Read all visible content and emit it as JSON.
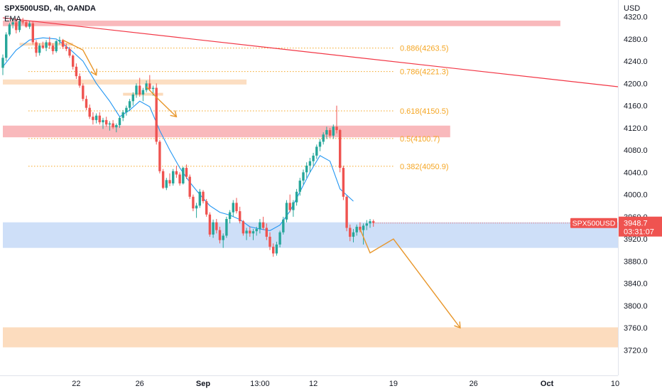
{
  "header": {
    "symbol_line": "SPX500USD, 4h, OANDA",
    "indicator": "EMA"
  },
  "colors": {
    "up": "#26a69a",
    "down": "#ef5350",
    "ema": "#2196f3",
    "trend_line": "#f23645",
    "fib": "#f5a623",
    "resistance_zone": "#f7a1a6",
    "support_zone": "#c5d9f7",
    "demand_zone": "#fbd6b3",
    "projection": "#e8962a",
    "price_label_bg": "#ef5350"
  },
  "chart_data": {
    "type": "candlestick",
    "currency": "USD",
    "price_axis": {
      "min": 3700,
      "max": 4330,
      "ticks": [
        "4320.0",
        "4280.0",
        "4240.0",
        "4200.0",
        "4160.0",
        "4120.0",
        "4080.0",
        "4040.0",
        "4000.0",
        "3960.0",
        "3920.0",
        "3880.0",
        "3840.0",
        "3800.0",
        "3760.0",
        "3720.0"
      ]
    },
    "time_axis": {
      "bar_min": 0,
      "bar_max": 184,
      "ticks": [
        {
          "label": "22",
          "bar": 22,
          "bold": false
        },
        {
          "label": "26",
          "bar": 41,
          "bold": false
        },
        {
          "label": "Sep",
          "bar": 60,
          "bold": true
        },
        {
          "label": "13:00",
          "bar": 77,
          "bold": false
        },
        {
          "label": "12",
          "bar": 93,
          "bold": false
        },
        {
          "label": "19",
          "bar": 117,
          "bold": false
        },
        {
          "label": "26",
          "bar": 141,
          "bold": false
        },
        {
          "label": "Oct",
          "bar": 163,
          "bold": true
        },
        {
          "label": "10",
          "bar": 187,
          "bold": false
        }
      ]
    },
    "last_price": {
      "symbol": "SPX500USD",
      "price": "3948.7",
      "countdown": "03:31:07",
      "value": 3948.7
    },
    "trend_line": {
      "from": {
        "bar": 0,
        "price": 4318
      },
      "to": {
        "bar": 187,
        "price": 4194
      }
    },
    "fib_levels": [
      {
        "label": "0.886(4263.5)",
        "price": 4263.5,
        "bar_start": 9,
        "bar_end": 121
      },
      {
        "label": "0.786(4221.3)",
        "price": 4221.3,
        "bar_start": 9,
        "bar_end": 121
      },
      {
        "label": "0.618(4150.5)",
        "price": 4150.5,
        "bar_start": 9,
        "bar_end": 121
      },
      {
        "label": "0.5(4100.7)",
        "price": 4100.7,
        "bar_start": 9,
        "bar_end": 121
      },
      {
        "label": "0.382(4050.9)",
        "price": 4050.9,
        "bar_start": 9,
        "bar_end": 121
      }
    ],
    "zones": [
      {
        "name": "resistance-zone-top",
        "price_top": 4313,
        "price_bottom": 4303,
        "bar_start": 0,
        "bar_end": 167,
        "kind": "resistance_zone",
        "opacity": 0.75
      },
      {
        "name": "resistance-zone-mid",
        "price_top": 4124,
        "price_bottom": 4103,
        "bar_start": 0,
        "bar_end": 134,
        "kind": "resistance_zone",
        "opacity": 0.75
      },
      {
        "name": "supply-zone-upper",
        "price_top": 4207,
        "price_bottom": 4198,
        "bar_start": 0,
        "bar_end": 73,
        "kind": "demand_zone",
        "opacity": 0.8
      },
      {
        "name": "small-zone-1",
        "price_top": 4273,
        "price_bottom": 4268,
        "bar_start": 5,
        "bar_end": 21,
        "kind": "demand_zone",
        "opacity": 0.9
      },
      {
        "name": "small-zone-2",
        "price_top": 4183,
        "price_bottom": 4178,
        "bar_start": 36,
        "bar_end": 48,
        "kind": "demand_zone",
        "opacity": 0.9
      },
      {
        "name": "support-zone",
        "price_top": 3950,
        "price_bottom": 3904,
        "bar_start": 0,
        "bar_end": 187,
        "kind": "support_zone",
        "opacity": 0.85
      },
      {
        "name": "demand-zone-bottom",
        "price_top": 3761,
        "price_bottom": 3725,
        "bar_start": 0,
        "bar_end": 187,
        "kind": "demand_zone",
        "opacity": 0.85
      }
    ],
    "projection_paths": [
      {
        "name": "projection-arrow-1",
        "points": [
          [
            18,
            4278
          ],
          [
            24,
            4260
          ],
          [
            28,
            4215
          ]
        ]
      },
      {
        "name": "projection-arrow-2",
        "points": [
          [
            43,
            4194
          ],
          [
            46,
            4175
          ],
          [
            52,
            4140
          ]
        ]
      },
      {
        "name": "projection-arrow-main",
        "points": [
          [
            107,
            3938
          ],
          [
            110,
            3895
          ],
          [
            117,
            3920
          ],
          [
            137,
            3760
          ]
        ]
      }
    ],
    "ema": [
      [
        0,
        4230
      ],
      [
        4,
        4260
      ],
      [
        8,
        4278
      ],
      [
        12,
        4282
      ],
      [
        16,
        4280
      ],
      [
        20,
        4262
      ],
      [
        24,
        4240
      ],
      [
        28,
        4200
      ],
      [
        32,
        4168
      ],
      [
        35,
        4140
      ],
      [
        38,
        4152
      ],
      [
        41,
        4168
      ],
      [
        44,
        4158
      ],
      [
        47,
        4115
      ],
      [
        50,
        4080
      ],
      [
        53,
        4048
      ],
      [
        56,
        4022
      ],
      [
        59,
        4000
      ],
      [
        62,
        3980
      ],
      [
        65,
        3968
      ],
      [
        68,
        3963
      ],
      [
        71,
        3955
      ],
      [
        74,
        3942
      ],
      [
        77,
        3938
      ],
      [
        80,
        3935
      ],
      [
        83,
        3945
      ],
      [
        86,
        3970
      ],
      [
        89,
        4005
      ],
      [
        92,
        4040
      ],
      [
        95,
        4070
      ],
      [
        98,
        4060
      ],
      [
        101,
        4010
      ],
      [
        105,
        3988
      ]
    ],
    "candles": [
      [
        0,
        4228,
        4252,
        4215,
        4246
      ],
      [
        1,
        4246,
        4292,
        4240,
        4288
      ],
      [
        2,
        4288,
        4309,
        4285,
        4306
      ],
      [
        3,
        4306,
        4318,
        4299,
        4310
      ],
      [
        4,
        4310,
        4316,
        4290,
        4296
      ],
      [
        5,
        4296,
        4314,
        4292,
        4312
      ],
      [
        6,
        4312,
        4318,
        4306,
        4310
      ],
      [
        7,
        4310,
        4314,
        4300,
        4302
      ],
      [
        8,
        4302,
        4312,
        4298,
        4308
      ],
      [
        9,
        4308,
        4312,
        4270,
        4274
      ],
      [
        10,
        4274,
        4278,
        4248,
        4255
      ],
      [
        11,
        4255,
        4272,
        4250,
        4268
      ],
      [
        12,
        4268,
        4275,
        4262,
        4264
      ],
      [
        13,
        4264,
        4278,
        4258,
        4274
      ],
      [
        14,
        4274,
        4284,
        4262,
        4268
      ],
      [
        15,
        4268,
        4272,
        4252,
        4258
      ],
      [
        16,
        4258,
        4278,
        4255,
        4276
      ],
      [
        17,
        4276,
        4284,
        4270,
        4278
      ],
      [
        18,
        4278,
        4280,
        4262,
        4266
      ],
      [
        19,
        4266,
        4272,
        4258,
        4262
      ],
      [
        20,
        4262,
        4266,
        4246,
        4250
      ],
      [
        21,
        4250,
        4252,
        4225,
        4230
      ],
      [
        22,
        4230,
        4236,
        4208,
        4213
      ],
      [
        23,
        4213,
        4218,
        4192,
        4196
      ],
      [
        24,
        4196,
        4200,
        4168,
        4172
      ],
      [
        25,
        4172,
        4178,
        4152,
        4156
      ],
      [
        26,
        4156,
        4162,
        4136,
        4140
      ],
      [
        27,
        4140,
        4148,
        4126,
        4134
      ],
      [
        28,
        4134,
        4146,
        4128,
        4142
      ],
      [
        29,
        4142,
        4148,
        4126,
        4130
      ],
      [
        30,
        4130,
        4138,
        4118,
        4134
      ],
      [
        31,
        4134,
        4140,
        4122,
        4126
      ],
      [
        32,
        4126,
        4132,
        4115,
        4128
      ],
      [
        33,
        4128,
        4134,
        4118,
        4121
      ],
      [
        34,
        4121,
        4128,
        4112,
        4125
      ],
      [
        35,
        4125,
        4140,
        4120,
        4138
      ],
      [
        36,
        4138,
        4152,
        4132,
        4148
      ],
      [
        37,
        4148,
        4160,
        4142,
        4156
      ],
      [
        38,
        4156,
        4172,
        4150,
        4168
      ],
      [
        39,
        4168,
        4184,
        4160,
        4180
      ],
      [
        40,
        4180,
        4200,
        4174,
        4196
      ],
      [
        41,
        4196,
        4210,
        4176,
        4180
      ],
      [
        42,
        4180,
        4192,
        4168,
        4188
      ],
      [
        43,
        4188,
        4205,
        4184,
        4200
      ],
      [
        44,
        4200,
        4215,
        4186,
        4190
      ],
      [
        45,
        4190,
        4196,
        4178,
        4192
      ],
      [
        46,
        4192,
        4200,
        4090,
        4095
      ],
      [
        47,
        4095,
        4098,
        4038,
        4042
      ],
      [
        48,
        4042,
        4046,
        4010,
        4012
      ],
      [
        49,
        4012,
        4030,
        4008,
        4026
      ],
      [
        50,
        4026,
        4038,
        4015,
        4020
      ],
      [
        51,
        4020,
        4046,
        4016,
        4042
      ],
      [
        52,
        4042,
        4052,
        4030,
        4036
      ],
      [
        53,
        4036,
        4040,
        4016,
        4020
      ],
      [
        54,
        4020,
        4050,
        4018,
        4048
      ],
      [
        55,
        4048,
        4054,
        4028,
        4032
      ],
      [
        56,
        4032,
        4036,
        3992,
        3996
      ],
      [
        57,
        3996,
        4000,
        3970,
        3975
      ],
      [
        58,
        3975,
        3985,
        3958,
        3980
      ],
      [
        59,
        3980,
        4010,
        3976,
        4005
      ],
      [
        60,
        4005,
        4008,
        3984,
        3988
      ],
      [
        61,
        3988,
        3992,
        3960,
        3964
      ],
      [
        62,
        3964,
        3968,
        3924,
        3928
      ],
      [
        63,
        3928,
        3955,
        3922,
        3950
      ],
      [
        64,
        3950,
        3956,
        3930,
        3936
      ],
      [
        65,
        3936,
        3942,
        3912,
        3918
      ],
      [
        66,
        3918,
        3930,
        3904,
        3926
      ],
      [
        67,
        3926,
        3960,
        3922,
        3956
      ],
      [
        68,
        3956,
        3972,
        3948,
        3968
      ],
      [
        69,
        3968,
        3990,
        3960,
        3985
      ],
      [
        70,
        3985,
        3994,
        3966,
        3970
      ],
      [
        71,
        3970,
        3978,
        3948,
        3952
      ],
      [
        72,
        3952,
        3954,
        3926,
        3930
      ],
      [
        73,
        3930,
        3940,
        3918,
        3935
      ],
      [
        74,
        3935,
        3942,
        3924,
        3930
      ],
      [
        75,
        3930,
        3938,
        3918,
        3934
      ],
      [
        76,
        3934,
        3942,
        3926,
        3938
      ],
      [
        77,
        3938,
        3956,
        3930,
        3950
      ],
      [
        78,
        3950,
        3960,
        3936,
        3940
      ],
      [
        79,
        3940,
        3948,
        3918,
        3924
      ],
      [
        80,
        3924,
        3932,
        3900,
        3906
      ],
      [
        81,
        3906,
        3912,
        3888,
        3894
      ],
      [
        82,
        3894,
        3915,
        3890,
        3910
      ],
      [
        83,
        3910,
        3935,
        3905,
        3932
      ],
      [
        84,
        3932,
        3960,
        3928,
        3955
      ],
      [
        85,
        3955,
        3990,
        3950,
        3985
      ],
      [
        86,
        3985,
        4000,
        3968,
        3972
      ],
      [
        87,
        3972,
        3990,
        3960,
        3986
      ],
      [
        88,
        3986,
        4010,
        3980,
        4005
      ],
      [
        89,
        4005,
        4030,
        3998,
        4025
      ],
      [
        90,
        4025,
        4045,
        4018,
        4040
      ],
      [
        91,
        4040,
        4058,
        4030,
        4052
      ],
      [
        92,
        4052,
        4066,
        4040,
        4060
      ],
      [
        93,
        4060,
        4075,
        4052,
        4070
      ],
      [
        94,
        4070,
        4090,
        4064,
        4086
      ],
      [
        95,
        4086,
        4100,
        4078,
        4095
      ],
      [
        96,
        4095,
        4112,
        4090,
        4108
      ],
      [
        97,
        4108,
        4122,
        4100,
        4116
      ],
      [
        98,
        4116,
        4120,
        4102,
        4106
      ],
      [
        99,
        4106,
        4126,
        4100,
        4122
      ],
      [
        100,
        4122,
        4160,
        4110,
        4116
      ],
      [
        101,
        4116,
        4118,
        4040,
        4048
      ],
      [
        102,
        4048,
        4052,
        3990,
        3996
      ],
      [
        103,
        3996,
        3998,
        3934,
        3940
      ],
      [
        104,
        3940,
        3946,
        3916,
        3924
      ],
      [
        105,
        3924,
        3938,
        3914,
        3932
      ],
      [
        106,
        3932,
        3946,
        3926,
        3942
      ],
      [
        107,
        3942,
        3950,
        3932,
        3936
      ],
      [
        108,
        3936,
        3948,
        3910,
        3944
      ],
      [
        109,
        3944,
        3954,
        3936,
        3948
      ],
      [
        110,
        3948,
        3956,
        3940,
        3952
      ],
      [
        111,
        3952,
        3955,
        3942,
        3949
      ]
    ]
  }
}
